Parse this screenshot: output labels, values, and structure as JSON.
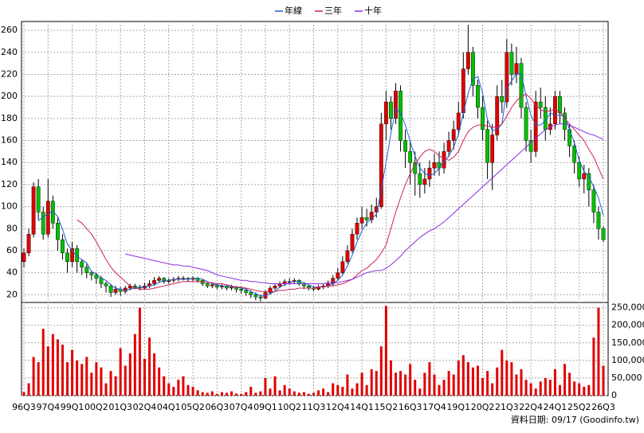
{
  "chart_data": {
    "type": "candlestick",
    "legend": [
      "年線",
      "三年",
      "十年"
    ],
    "footer": "資料日期: 09/17 (Goodinfo.tw)",
    "categories": [
      "96Q3",
      null,
      null,
      null,
      null,
      "97Q4",
      null,
      null,
      null,
      null,
      "99Q1",
      null,
      null,
      null,
      null,
      "00Q2",
      null,
      null,
      null,
      null,
      "01Q3",
      null,
      null,
      null,
      null,
      "02Q4",
      null,
      null,
      null,
      null,
      "04Q1",
      null,
      null,
      null,
      null,
      "05Q2",
      null,
      null,
      null,
      null,
      "06Q3",
      null,
      null,
      null,
      null,
      "07Q4",
      null,
      null,
      null,
      null,
      "09Q1",
      null,
      null,
      null,
      null,
      "10Q2",
      null,
      null,
      null,
      null,
      "11Q3",
      null,
      null,
      null,
      null,
      "12Q4",
      null,
      null,
      null,
      null,
      "14Q1",
      null,
      null,
      null,
      null,
      "15Q2",
      null,
      null,
      null,
      null,
      "16Q3",
      null,
      null,
      null,
      null,
      "17Q4",
      null,
      null,
      null,
      null,
      "19Q1",
      null,
      null,
      null,
      null,
      "20Q2",
      null,
      null,
      null,
      null,
      "21Q3",
      null,
      null,
      null,
      null,
      "22Q4",
      null,
      null,
      null,
      null,
      "24Q1",
      null,
      null,
      null,
      null,
      "25Q2",
      null,
      null,
      null,
      null,
      "26Q3"
    ],
    "open": [
      50,
      58,
      75,
      118,
      95,
      75,
      105,
      85,
      70,
      58,
      50,
      62,
      50,
      45,
      40,
      38,
      35,
      30,
      28,
      22,
      25,
      23,
      26,
      28,
      27,
      26,
      28,
      30,
      33,
      35,
      32,
      33,
      34,
      35,
      35,
      34,
      35,
      33,
      30,
      28,
      29,
      27,
      28,
      26,
      27,
      25,
      24,
      22,
      20,
      18,
      17,
      22,
      26,
      28,
      30,
      32,
      32,
      33,
      30,
      28,
      26,
      25,
      27,
      28,
      30,
      35,
      40,
      50,
      60,
      75,
      85,
      90,
      88,
      95,
      100,
      175,
      195,
      180,
      205,
      160,
      150,
      140,
      130,
      120,
      125,
      135,
      140,
      135,
      150,
      160,
      170,
      185,
      225,
      240,
      210,
      190,
      170,
      140,
      165,
      200,
      195,
      240,
      220,
      230,
      190,
      160,
      150,
      195,
      190,
      170,
      175,
      200,
      185,
      170,
      155,
      140,
      125,
      130,
      115,
      95,
      80
    ],
    "high": [
      62,
      80,
      122,
      125,
      100,
      125,
      110,
      90,
      75,
      62,
      68,
      65,
      52,
      48,
      42,
      40,
      37,
      32,
      30,
      28,
      27,
      28,
      30,
      30,
      29,
      31,
      33,
      36,
      37,
      36,
      35,
      36,
      37,
      37,
      36,
      37,
      36,
      34,
      31,
      31,
      30,
      30,
      29,
      29,
      28,
      27,
      26,
      24,
      22,
      20,
      24,
      28,
      30,
      32,
      34,
      35,
      35,
      34,
      31,
      29,
      28,
      29,
      30,
      33,
      38,
      44,
      55,
      65,
      80,
      90,
      100,
      98,
      102,
      108,
      185,
      205,
      200,
      212,
      210,
      170,
      160,
      150,
      140,
      135,
      142,
      148,
      150,
      158,
      168,
      178,
      195,
      240,
      265,
      245,
      215,
      200,
      178,
      175,
      210,
      215,
      252,
      248,
      245,
      235,
      195,
      170,
      205,
      208,
      200,
      190,
      205,
      205,
      190,
      175,
      160,
      145,
      138,
      135,
      120,
      100,
      82
    ],
    "low": [
      45,
      55,
      72,
      88,
      70,
      72,
      80,
      60,
      52,
      40,
      45,
      40,
      38,
      35,
      33,
      30,
      26,
      22,
      18,
      20,
      19,
      21,
      24,
      25,
      24,
      25,
      26,
      28,
      31,
      30,
      30,
      31,
      32,
      33,
      32,
      32,
      31,
      28,
      26,
      26,
      25,
      25,
      24,
      24,
      22,
      21,
      19,
      17,
      15,
      14,
      16,
      20,
      24,
      26,
      28,
      29,
      30,
      28,
      25,
      24,
      23,
      24,
      25,
      26,
      28,
      33,
      38,
      48,
      58,
      70,
      80,
      82,
      85,
      90,
      98,
      160,
      170,
      175,
      150,
      135,
      120,
      110,
      108,
      112,
      118,
      128,
      128,
      130,
      145,
      152,
      165,
      180,
      220,
      200,
      180,
      160,
      125,
      115,
      160,
      185,
      190,
      210,
      212,
      180,
      150,
      140,
      145,
      180,
      160,
      165,
      170,
      175,
      160,
      145,
      130,
      118,
      112,
      100,
      85,
      70,
      68
    ],
    "close": [
      58,
      75,
      118,
      95,
      75,
      105,
      85,
      70,
      58,
      50,
      62,
      50,
      45,
      40,
      38,
      35,
      30,
      28,
      22,
      25,
      23,
      26,
      28,
      27,
      26,
      28,
      30,
      33,
      35,
      32,
      33,
      34,
      35,
      35,
      34,
      35,
      33,
      30,
      28,
      29,
      27,
      28,
      26,
      27,
      25,
      24,
      22,
      20,
      18,
      17,
      22,
      26,
      28,
      30,
      32,
      32,
      33,
      30,
      28,
      26,
      25,
      27,
      28,
      30,
      35,
      40,
      50,
      60,
      75,
      85,
      90,
      88,
      95,
      100,
      175,
      195,
      180,
      205,
      160,
      150,
      140,
      130,
      120,
      125,
      135,
      140,
      135,
      150,
      160,
      170,
      185,
      225,
      240,
      210,
      190,
      170,
      140,
      165,
      200,
      195,
      240,
      220,
      230,
      190,
      160,
      150,
      195,
      190,
      170,
      175,
      200,
      185,
      170,
      155,
      140,
      125,
      130,
      115,
      95,
      80,
      70
    ],
    "up_color": "#e00000",
    "down_color": "#00c000",
    "series": [
      {
        "name": "年線",
        "color": "#1f5fd0",
        "values": [
          null,
          null,
          null,
          87,
          91,
          93,
          96,
          91,
          79,
          66,
          60,
          55,
          52,
          49,
          41,
          39,
          35,
          33,
          29,
          26,
          25,
          24,
          25,
          26,
          27,
          27,
          28,
          29,
          31,
          33,
          33,
          34,
          34,
          34,
          34,
          35,
          35,
          34,
          32,
          30,
          29,
          28,
          28,
          27,
          27,
          26,
          25,
          23,
          21,
          19,
          19,
          21,
          23,
          27,
          29,
          31,
          32,
          32,
          31,
          29,
          27,
          27,
          27,
          28,
          30,
          33,
          38,
          46,
          56,
          68,
          78,
          85,
          89,
          93,
          115,
          140,
          166,
          189,
          185,
          174,
          159,
          146,
          135,
          130,
          128,
          130,
          135,
          141,
          146,
          154,
          166,
          185,
          203,
          216,
          218,
          203,
          179,
          169,
          170,
          175,
          207,
          214,
          221,
          220,
          200,
          183,
          174,
          174,
          178,
          185,
          183,
          183,
          182,
          170,
          158,
          142,
          132,
          127,
          118,
          108,
          92
        ]
      },
      {
        "name": "三年",
        "color": "#d0205a",
        "values": [
          null,
          null,
          null,
          null,
          null,
          null,
          null,
          null,
          null,
          null,
          null,
          88,
          85,
          80,
          75,
          68,
          60,
          52,
          45,
          40,
          36,
          32,
          28,
          26,
          25,
          25,
          25,
          26,
          27,
          28,
          29,
          30,
          31,
          32,
          32,
          32,
          32,
          32,
          31,
          31,
          30,
          30,
          29,
          28,
          27,
          27,
          26,
          25,
          24,
          23,
          23,
          23,
          23,
          24,
          24,
          25,
          25,
          26,
          26,
          26,
          26,
          27,
          27,
          28,
          28,
          29,
          30,
          32,
          34,
          38,
          42,
          44,
          48,
          52,
          58,
          65,
          80,
          95,
          108,
          120,
          130,
          138,
          145,
          150,
          152,
          150,
          146,
          144,
          142,
          145,
          150,
          160,
          168,
          172,
          174,
          174,
          173,
          172,
          172,
          175,
          182,
          190,
          196,
          200,
          202,
          198,
          192,
          188,
          186,
          187,
          188,
          186,
          180,
          175,
          170,
          165,
          160,
          152,
          145,
          135,
          125
        ]
      },
      {
        "name": "十年",
        "color": "#8a2be2",
        "values": [
          null,
          null,
          null,
          null,
          null,
          null,
          null,
          null,
          null,
          null,
          null,
          null,
          null,
          null,
          null,
          null,
          null,
          null,
          null,
          null,
          null,
          57,
          56,
          55,
          54,
          53,
          52,
          51,
          50,
          49,
          48,
          47,
          47,
          46,
          46,
          45,
          44,
          43,
          42,
          40,
          38,
          37,
          36,
          35,
          34,
          33,
          33,
          32,
          32,
          31,
          31,
          30,
          30,
          30,
          30,
          30,
          30,
          30,
          30,
          30,
          30,
          30,
          30,
          31,
          31,
          31,
          32,
          33,
          34,
          36,
          38,
          40,
          41,
          42,
          42,
          44,
          47,
          51,
          55,
          60,
          64,
          68,
          72,
          75,
          78,
          80,
          83,
          86,
          90,
          94,
          98,
          102,
          106,
          110,
          114,
          118,
          122,
          126,
          130,
          134,
          138,
          142,
          146,
          150,
          154,
          158,
          162,
          166,
          170,
          172,
          174,
          175,
          175,
          174,
          172,
          170,
          168,
          166,
          165,
          163,
          161
        ]
      }
    ],
    "ylim": [
      13,
      268
    ],
    "yticks": [
      20,
      40,
      60,
      80,
      100,
      120,
      140,
      160,
      180,
      200,
      220,
      240,
      260
    ],
    "volume": {
      "color": "#e00000",
      "values": [
        10000,
        35000,
        110000,
        95000,
        190000,
        140000,
        175000,
        160000,
        145000,
        95000,
        130000,
        100000,
        90000,
        110000,
        65000,
        95000,
        80000,
        35000,
        70000,
        55000,
        135000,
        85000,
        120000,
        175000,
        250000,
        105000,
        165000,
        120000,
        80000,
        55000,
        35000,
        25000,
        45000,
        55000,
        30000,
        25000,
        15000,
        10000,
        8000,
        12000,
        5000,
        10000,
        8000,
        12000,
        6000,
        5000,
        10000,
        25000,
        8000,
        12000,
        50000,
        20000,
        55000,
        15000,
        30000,
        20000,
        12000,
        8000,
        10000,
        5000,
        8000,
        15000,
        20000,
        10000,
        35000,
        30000,
        25000,
        60000,
        20000,
        35000,
        65000,
        30000,
        75000,
        70000,
        140000,
        255000,
        100000,
        65000,
        70000,
        60000,
        90000,
        45000,
        20000,
        65000,
        95000,
        60000,
        30000,
        45000,
        70000,
        60000,
        100000,
        115000,
        95000,
        80000,
        85000,
        50000,
        70000,
        35000,
        80000,
        130000,
        100000,
        95000,
        60000,
        75000,
        45000,
        35000,
        20000,
        40000,
        50000,
        45000,
        75000,
        30000,
        90000,
        65000,
        40000,
        35000,
        25000,
        30000,
        165000,
        250000,
        85000
      ],
      "ylim": [
        0,
        265000
      ],
      "yticks": [
        {
          "value": 0,
          "label": "0"
        },
        {
          "value": 50000,
          "label": "50,000"
        },
        {
          "value": 100000,
          "label": "100,000"
        },
        {
          "value": 150000,
          "label": "150,000"
        },
        {
          "value": 200000,
          "label": "200,000"
        },
        {
          "value": 250000,
          "label": "250,000"
        }
      ]
    },
    "grid": true
  }
}
